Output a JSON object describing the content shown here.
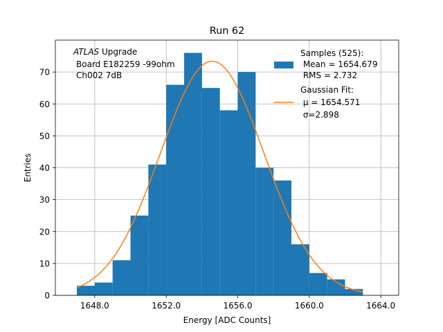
{
  "chart_data": {
    "type": "bar",
    "title": "Run 62",
    "xlabel": "Energy [ADC Counts]",
    "ylabel": "Entries",
    "xlim": [
      1645.8,
      1665.0
    ],
    "ylim": [
      0,
      80
    ],
    "x_ticks": [
      1648.0,
      1652.0,
      1656.0,
      1660.0,
      1664.0
    ],
    "x_tick_labels": [
      "1648.0",
      "1652.0",
      "1656.0",
      "1660.0",
      "1664.0"
    ],
    "y_ticks": [
      0,
      10,
      20,
      30,
      40,
      50,
      60,
      70
    ],
    "y_tick_labels": [
      "0",
      "10",
      "20",
      "30",
      "40",
      "50",
      "60",
      "70"
    ],
    "grid": true,
    "annotation": [
      "ATLAS",
      " Upgrade",
      "Board E182259 -99ohm",
      "Ch002 7dB"
    ],
    "histogram": {
      "bin_edges": [
        1647.0,
        1648.0,
        1649.0,
        1650.0,
        1651.0,
        1652.0,
        1653.0,
        1654.0,
        1655.0,
        1656.0,
        1657.0,
        1658.0,
        1659.0,
        1660.0,
        1661.0,
        1662.0,
        1663.0
      ],
      "counts": [
        3,
        4,
        11,
        25,
        41,
        66,
        76,
        65,
        58,
        70,
        40,
        36,
        16,
        7,
        5,
        2
      ],
      "color": "#1f77b4"
    },
    "gaussian_fit": {
      "amplitude": 73.4,
      "mu": 1654.571,
      "sigma": 2.898,
      "x_range": [
        1647.0,
        1663.0
      ],
      "color": "#ff7f0e"
    },
    "legend": {
      "placement": "top-right",
      "entries": [
        {
          "lines": [
            "Samples (525):",
            " Mean = 1654.679",
            " RMS = 2.732"
          ],
          "color": "#1f77b4",
          "kind": "patch"
        },
        {
          "lines": [
            "Gaussian Fit:",
            " μ = 1654.571",
            " σ=2.898"
          ],
          "color": "#ff7f0e",
          "kind": "line"
        }
      ]
    }
  }
}
